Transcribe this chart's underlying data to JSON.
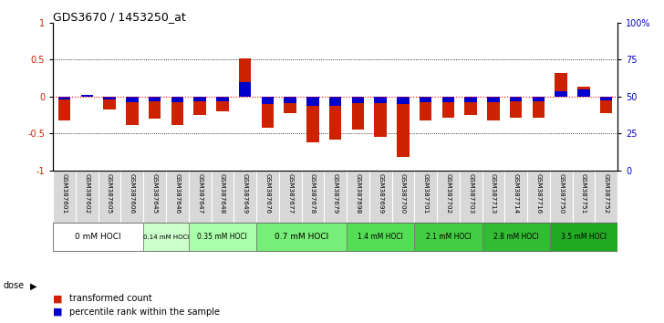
{
  "title": "GDS3670 / 1453250_at",
  "samples": [
    "GSM387601",
    "GSM387602",
    "GSM387605",
    "GSM387606",
    "GSM387645",
    "GSM387646",
    "GSM387647",
    "GSM387648",
    "GSM387649",
    "GSM387676",
    "GSM387677",
    "GSM387678",
    "GSM387679",
    "GSM387698",
    "GSM387699",
    "GSM387700",
    "GSM387701",
    "GSM387702",
    "GSM387703",
    "GSM387713",
    "GSM387714",
    "GSM387716",
    "GSM387750",
    "GSM387751",
    "GSM387752"
  ],
  "transformed_count": [
    -0.32,
    0.01,
    -0.18,
    -0.38,
    -0.3,
    -0.38,
    -0.25,
    -0.2,
    0.52,
    -0.42,
    -0.22,
    -0.62,
    -0.58,
    -0.45,
    -0.55,
    -0.82,
    -0.32,
    -0.28,
    -0.25,
    -0.32,
    -0.28,
    -0.28,
    0.32,
    0.14,
    -0.22
  ],
  "percentile_rank": [
    -0.04,
    0.02,
    -0.04,
    -0.07,
    -0.06,
    -0.07,
    -0.06,
    -0.06,
    0.2,
    -0.1,
    -0.09,
    -0.12,
    -0.12,
    -0.09,
    -0.09,
    -0.1,
    -0.07,
    -0.07,
    -0.07,
    -0.07,
    -0.06,
    -0.06,
    0.07,
    0.1,
    -0.05
  ],
  "dose_groups": [
    {
      "label": "0 mM HOCl",
      "start": 0,
      "end": 4,
      "color": "#ffffff"
    },
    {
      "label": "0.14 mM HOCl",
      "start": 4,
      "end": 6,
      "color": "#ccffcc"
    },
    {
      "label": "0.35 mM HOCl",
      "start": 6,
      "end": 9,
      "color": "#aaffaa"
    },
    {
      "label": "0.7 mM HOCl",
      "start": 9,
      "end": 13,
      "color": "#77ee77"
    },
    {
      "label": "1.4 mM HOCl",
      "start": 13,
      "end": 16,
      "color": "#55dd55"
    },
    {
      "label": "2.1 mM HOCl",
      "start": 16,
      "end": 19,
      "color": "#44cc44"
    },
    {
      "label": "2.8 mM HOCl",
      "start": 19,
      "end": 22,
      "color": "#33bb33"
    },
    {
      "label": "3.5 mM HOCl",
      "start": 22,
      "end": 25,
      "color": "#22aa22"
    }
  ],
  "bar_color_red": "#cc2200",
  "bar_color_blue": "#0000cc",
  "ytick_color_left": "#cc2200",
  "ytick_color_right": "#0000cc",
  "ylim": [
    -1,
    1
  ],
  "yticks_left": [
    -1,
    -0.5,
    0,
    0.5,
    1
  ],
  "yticks_right": [
    0,
    25,
    50,
    75,
    100
  ]
}
